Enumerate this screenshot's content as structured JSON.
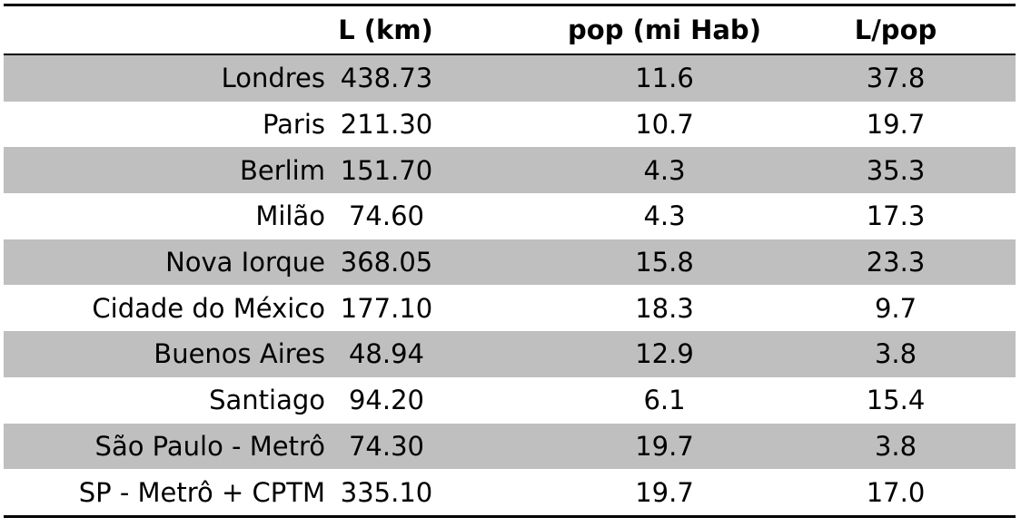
{
  "table": {
    "headers": [
      "",
      "L (km)",
      "pop (mi Hab)",
      "L/pop"
    ],
    "rows": [
      {
        "city": "Londres",
        "length": "438.73",
        "pop": "11.6",
        "ratio": "37.8",
        "shaded": true
      },
      {
        "city": "Paris",
        "length": "211.30",
        "pop": "10.7",
        "ratio": "19.7",
        "shaded": false
      },
      {
        "city": "Berlim",
        "length": "151.70",
        "pop": "4.3",
        "ratio": "35.3",
        "shaded": true
      },
      {
        "city": "Milão",
        "length": "74.60",
        "pop": "4.3",
        "ratio": "17.3",
        "shaded": false
      },
      {
        "city": "Nova Iorque",
        "length": "368.05",
        "pop": "15.8",
        "ratio": "23.3",
        "shaded": true
      },
      {
        "city": "Cidade do México",
        "length": "177.10",
        "pop": "18.3",
        "ratio": "9.7",
        "shaded": false
      },
      {
        "city": "Buenos Aires",
        "length": "48.94",
        "pop": "12.9",
        "ratio": "3.8",
        "shaded": true
      },
      {
        "city": "Santiago",
        "length": "94.20",
        "pop": "6.1",
        "ratio": "15.4",
        "shaded": false
      },
      {
        "city": "São Paulo - Metrô",
        "length": "74.30",
        "pop": "19.7",
        "ratio": "3.8",
        "shaded": true
      },
      {
        "city": "SP - Metrô + CPTM",
        "length": "335.10",
        "pop": "19.7",
        "ratio": "17.0",
        "shaded": false
      }
    ]
  },
  "colors": {
    "shade": "#bfbfbf",
    "rule": "#000000"
  }
}
